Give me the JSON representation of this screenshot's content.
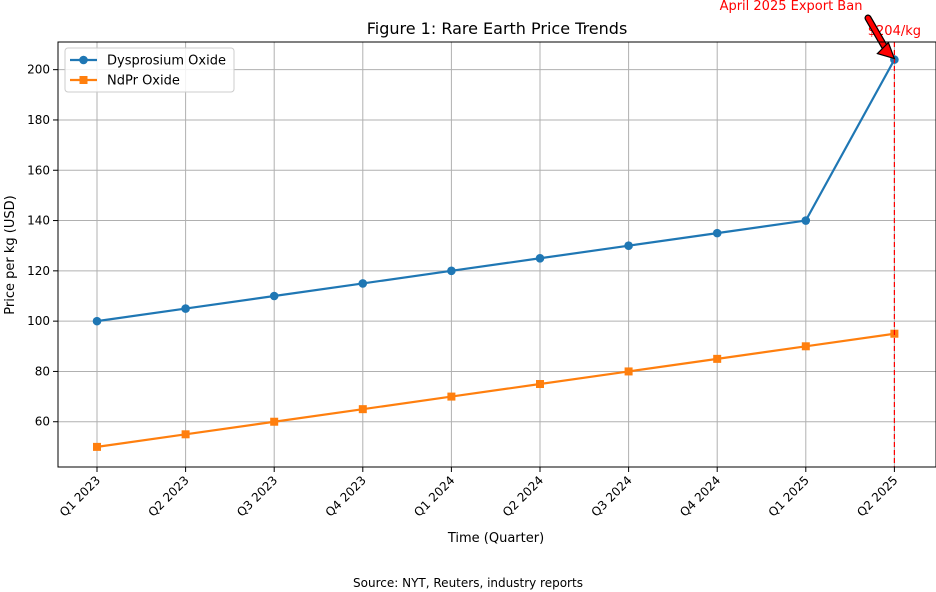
{
  "source_note": "Source: NYT, Reuters, industry reports",
  "chart_data": {
    "type": "line",
    "title": "Figure 1: Rare Earth Price Trends",
    "xlabel": "Time (Quarter)",
    "ylabel": "Price per kg (USD)",
    "categories": [
      "Q1 2023",
      "Q2 2023",
      "Q3 2023",
      "Q4 2023",
      "Q1 2024",
      "Q2 2024",
      "Q3 2024",
      "Q4 2024",
      "Q1 2025",
      "Q2 2025"
    ],
    "ylim": [
      42,
      211
    ],
    "yticks": [
      60,
      80,
      100,
      120,
      140,
      160,
      180,
      200
    ],
    "grid": true,
    "legend_position": "top-left",
    "series": [
      {
        "name": "Dysprosium Oxide",
        "color": "#1f77b4",
        "marker": "circle",
        "values": [
          100,
          105,
          110,
          115,
          120,
          125,
          130,
          135,
          140,
          204
        ]
      },
      {
        "name": "NdPr Oxide",
        "color": "#ff7f0e",
        "marker": "square",
        "values": [
          50,
          55,
          60,
          65,
          70,
          75,
          80,
          85,
          90,
          95
        ]
      }
    ],
    "annotations": {
      "vline": {
        "category": "Q2 2025",
        "color": "#ff0000",
        "style": "dashed"
      },
      "event_label": "April 2025 Export Ban",
      "point_label": "$204/kg",
      "label_color": "#ff0000",
      "arrow_color": "#ff0000"
    }
  }
}
